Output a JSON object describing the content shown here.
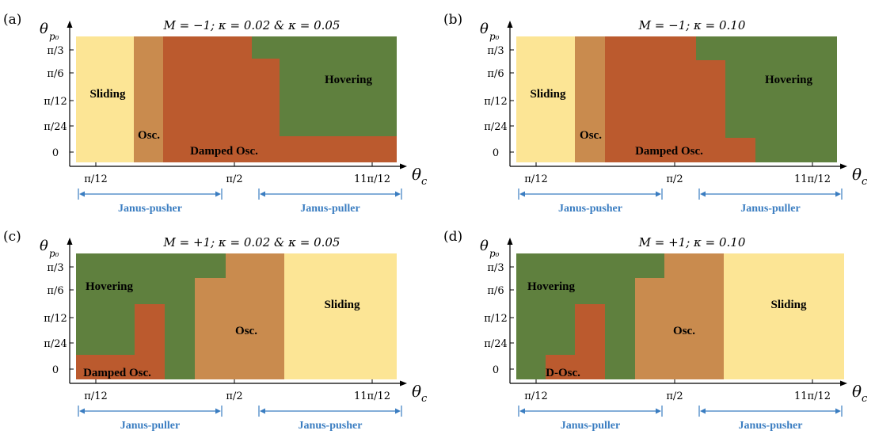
{
  "colors": {
    "sliding": "#FCE595",
    "osc": "#C98B4E",
    "damped": "#BB5A2E",
    "hovering": "#5F803E",
    "janus": "#3A7DC1",
    "axis": "#000000"
  },
  "axes": {
    "y_title": "θ",
    "y_title_sub": "p₀",
    "x_title": "θ",
    "x_title_sub": "c",
    "y_ticks": [
      "π/3",
      "π/6",
      "π/12",
      "π/24",
      "0"
    ],
    "x_ticks": [
      "π/12",
      "π/2",
      "11π/12"
    ]
  },
  "panels": [
    {
      "label": "(a)",
      "title": "M = −1; κ = 0.02 & κ = 0.05",
      "brackets": [
        "Janus-pusher",
        "Janus-puller"
      ],
      "regions": [
        {
          "name": "Sliding",
          "color": "sliding"
        },
        {
          "name": "Osc.",
          "color": "osc"
        },
        {
          "name": "Damped Osc.",
          "color": "damped"
        },
        {
          "name": "Hovering",
          "color": "hovering"
        }
      ]
    },
    {
      "label": "(b)",
      "title": "M = −1; κ = 0.10",
      "brackets": [
        "Janus-pusher",
        "Janus-puller"
      ],
      "regions": [
        {
          "name": "Sliding",
          "color": "sliding"
        },
        {
          "name": "Osc.",
          "color": "osc"
        },
        {
          "name": "Damped Osc.",
          "color": "damped"
        },
        {
          "name": "Hovering",
          "color": "hovering"
        }
      ]
    },
    {
      "label": "(c)",
      "title": "M = +1; κ = 0.02 & κ = 0.05",
      "brackets": [
        "Janus-puller",
        "Janus-pusher"
      ],
      "regions": [
        {
          "name": "Hovering",
          "color": "hovering"
        },
        {
          "name": "Damped Osc.",
          "color": "damped"
        },
        {
          "name": "Osc.",
          "color": "osc"
        },
        {
          "name": "Sliding",
          "color": "sliding"
        }
      ]
    },
    {
      "label": "(d)",
      "title": "M = +1; κ = 0.10",
      "brackets": [
        "Janus-puller",
        "Janus-pusher"
      ],
      "regions": [
        {
          "name": "Hovering",
          "color": "hovering"
        },
        {
          "name": "D-Osc.",
          "color": "damped"
        },
        {
          "name": "Osc.",
          "color": "osc"
        },
        {
          "name": "Sliding",
          "color": "sliding"
        }
      ]
    }
  ]
}
